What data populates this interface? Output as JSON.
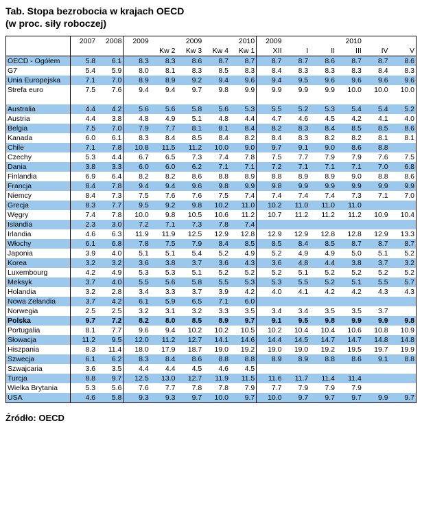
{
  "title": "Tab. Stopa bezrobocia w krajach OECD",
  "subtitle": "(w proc. siły roboczej)",
  "source": "Źródło: OECD",
  "colors": {
    "stripe": "#9bc8eb",
    "background": "#ffffff",
    "text": "#000000",
    "border": "#000000"
  },
  "header": {
    "row1": [
      "",
      "2007",
      "2008",
      "2009",
      "",
      "2009",
      "",
      "2010",
      "2009",
      "",
      "",
      "2010",
      "",
      ""
    ],
    "row2": [
      "",
      "",
      "",
      "",
      "Kw 2",
      "Kw 3",
      "Kw 4",
      "Kw 1",
      "XII",
      "I",
      "II",
      "III",
      "IV",
      "V"
    ]
  },
  "groups": [
    {
      "rows": [
        {
          "name": "OECD - Ogółem",
          "vals": [
            "5.8",
            "6.1",
            "8.3",
            "8.3",
            "8.6",
            "8.7",
            "8.7",
            "8.7",
            "8.7",
            "8.6",
            "8.7",
            "8.7",
            "8.6"
          ],
          "stripe": true
        },
        {
          "name": "G7",
          "vals": [
            "5.4",
            "5.9",
            "8.0",
            "8.1",
            "8.3",
            "8.5",
            "8.3",
            "8.4",
            "8.3",
            "8.3",
            "8.3",
            "8.4",
            "8.3"
          ],
          "stripe": false
        },
        {
          "name": "Unia Europejska",
          "vals": [
            "7.1",
            "7.0",
            "8.9",
            "8.9",
            "9.2",
            "9.4",
            "9.6",
            "9.4",
            "9.5",
            "9.6",
            "9.6",
            "9.6",
            "9.6"
          ],
          "stripe": true
        },
        {
          "name": "Strefa euro",
          "vals": [
            "7.5",
            "7.6",
            "9.4",
            "9.4",
            "9.7",
            "9.8",
            "9.9",
            "9.9",
            "9.9",
            "9.9",
            "10.0",
            "10.0",
            "10.0"
          ],
          "stripe": false
        }
      ]
    },
    {
      "rows": [
        {
          "name": "Australia",
          "vals": [
            "4.4",
            "4.2",
            "5.6",
            "5.6",
            "5.8",
            "5.6",
            "5.3",
            "5.5",
            "5.2",
            "5.3",
            "5.4",
            "5.4",
            "5.2"
          ],
          "stripe": true
        },
        {
          "name": "Austria",
          "vals": [
            "4.4",
            "3.8",
            "4.8",
            "4.9",
            "5.1",
            "4.8",
            "4.4",
            "4.7",
            "4.6",
            "4.5",
            "4.2",
            "4.1",
            "4.0"
          ],
          "stripe": false
        },
        {
          "name": "Belgia",
          "vals": [
            "7.5",
            "7.0",
            "7.9",
            "7.7",
            "8.1",
            "8.1",
            "8.4",
            "8.2",
            "8.3",
            "8.4",
            "8.5",
            "8.5",
            "8.6"
          ],
          "stripe": true
        },
        {
          "name": "Kanada",
          "vals": [
            "6.0",
            "6.1",
            "8.3",
            "8.4",
            "8.5",
            "8.4",
            "8.2",
            "8.4",
            "8.3",
            "8.2",
            "8.2",
            "8.1",
            "8.1"
          ],
          "stripe": false
        },
        {
          "name": "Chile",
          "vals": [
            "7.1",
            "7.8",
            "10.8",
            "11.5",
            "11.2",
            "10.0",
            "9.0",
            "9.7",
            "9.1",
            "9.0",
            "8.6",
            "8.8",
            ""
          ],
          "stripe": true
        },
        {
          "name": "Czechy",
          "vals": [
            "5.3",
            "4.4",
            "6.7",
            "6.5",
            "7.3",
            "7.4",
            "7.8",
            "7.5",
            "7.7",
            "7.9",
            "7.9",
            "7.6",
            "7.5"
          ],
          "stripe": false
        },
        {
          "name": "Dania",
          "vals": [
            "3.8",
            "3.3",
            "6.0",
            "6.0",
            "6.2",
            "7.1",
            "7.1",
            "7.2",
            "7.1",
            "7.1",
            "7.1",
            "7.0",
            "6.8"
          ],
          "stripe": true
        },
        {
          "name": "Finlandia",
          "vals": [
            "6.9",
            "6.4",
            "8.2",
            "8.2",
            "8.6",
            "8.8",
            "8.9",
            "8.8",
            "8.9",
            "8.9",
            "9.0",
            "8.8",
            "8.6"
          ],
          "stripe": false
        },
        {
          "name": "Francja",
          "vals": [
            "8.4",
            "7.8",
            "9.4",
            "9.4",
            "9.6",
            "9.8",
            "9.9",
            "9.8",
            "9.9",
            "9.9",
            "9.9",
            "9.9",
            "9.9"
          ],
          "stripe": true
        },
        {
          "name": "Niemcy",
          "vals": [
            "8.4",
            "7.3",
            "7.5",
            "7.6",
            "7.6",
            "7.5",
            "7.4",
            "7.4",
            "7.4",
            "7.4",
            "7.3",
            "7.1",
            "7.0"
          ],
          "stripe": false
        },
        {
          "name": "Grecja",
          "vals": [
            "8.3",
            "7.7",
            "9.5",
            "9.2",
            "9.8",
            "10.2",
            "11.0",
            "10.2",
            "11.0",
            "11.0",
            "11.0",
            "",
            ""
          ],
          "stripe": true
        },
        {
          "name": "Węgry",
          "vals": [
            "7.4",
            "7.8",
            "10.0",
            "9.8",
            "10.5",
            "10.6",
            "11.2",
            "10.7",
            "11.2",
            "11.2",
            "11.2",
            "10.9",
            "10.4"
          ],
          "stripe": false
        },
        {
          "name": "Islandia",
          "vals": [
            "2.3",
            "3.0",
            "7.2",
            "7.1",
            "7.3",
            "7.8",
            "7.4",
            "",
            "",
            "",
            "",
            "",
            ""
          ],
          "stripe": true
        },
        {
          "name": "Irlandia",
          "vals": [
            "4.6",
            "6.3",
            "11.9",
            "11.9",
            "12.5",
            "12.9",
            "12.8",
            "12.9",
            "12.9",
            "12.8",
            "12.8",
            "12.9",
            "13.3"
          ],
          "stripe": false
        },
        {
          "name": "Włochy",
          "vals": [
            "6.1",
            "6.8",
            "7.8",
            "7.5",
            "7.9",
            "8.4",
            "8.5",
            "8.5",
            "8.4",
            "8.5",
            "8.7",
            "8.7",
            "8.7"
          ],
          "stripe": true
        },
        {
          "name": "Japonia",
          "vals": [
            "3.9",
            "4.0",
            "5.1",
            "5.1",
            "5.4",
            "5.2",
            "4.9",
            "5.2",
            "4.9",
            "4.9",
            "5.0",
            "5.1",
            "5.2"
          ],
          "stripe": false
        },
        {
          "name": "Korea",
          "vals": [
            "3.2",
            "3.2",
            "3.6",
            "3.8",
            "3.7",
            "3.6",
            "4.3",
            "3.6",
            "4.8",
            "4.4",
            "3.8",
            "3.7",
            "3.2"
          ],
          "stripe": true
        },
        {
          "name": "Luxembourg",
          "vals": [
            "4.2",
            "4.9",
            "5.3",
            "5.3",
            "5.1",
            "5.2",
            "5.2",
            "5.2",
            "5.1",
            "5.2",
            "5.2",
            "5.2",
            "5.2"
          ],
          "stripe": false
        },
        {
          "name": "Meksyk",
          "vals": [
            "3.7",
            "4.0",
            "5.5",
            "5.6",
            "5.8",
            "5.5",
            "5.3",
            "5.3",
            "5.5",
            "5.2",
            "5.1",
            "5.5",
            "5.7"
          ],
          "stripe": true
        },
        {
          "name": "Holandia",
          "vals": [
            "3.2",
            "2.8",
            "3.4",
            "3.3",
            "3.7",
            "3.9",
            "4.2",
            "4.0",
            "4.1",
            "4.2",
            "4.2",
            "4.3",
            "4.3"
          ],
          "stripe": false
        },
        {
          "name": "Nowa Zelandia",
          "vals": [
            "3.7",
            "4.2",
            "6.1",
            "5.9",
            "6.5",
            "7.1",
            "6.0",
            "",
            "",
            "",
            "",
            "",
            ""
          ],
          "stripe": true
        },
        {
          "name": "Norwegia",
          "vals": [
            "2.5",
            "2.5",
            "3.2",
            "3.1",
            "3.2",
            "3.3",
            "3.5",
            "3.4",
            "3.4",
            "3.5",
            "3.5",
            "3.7",
            ""
          ],
          "stripe": false
        },
        {
          "name": "Polska",
          "vals": [
            "9.7",
            "7.2",
            "8.2",
            "8.0",
            "8.5",
            "8.9",
            "9.7",
            "9.1",
            "9.5",
            "9.8",
            "9.9",
            "9.9",
            "9.8"
          ],
          "stripe": true,
          "bold": true
        },
        {
          "name": "Portugalia",
          "vals": [
            "8.1",
            "7.7",
            "9.6",
            "9.4",
            "10.2",
            "10.2",
            "10.5",
            "10.2",
            "10.4",
            "10.4",
            "10.6",
            "10.8",
            "10.9"
          ],
          "stripe": false
        },
        {
          "name": "Słowacja",
          "vals": [
            "11.2",
            "9.5",
            "12.0",
            "11.2",
            "12.7",
            "14.1",
            "14.6",
            "14.4",
            "14.5",
            "14.7",
            "14.7",
            "14.8",
            "14.8"
          ],
          "stripe": true
        },
        {
          "name": "Hiszpania",
          "vals": [
            "8.3",
            "11.4",
            "18.0",
            "17.9",
            "18.7",
            "19.0",
            "19.2",
            "19.0",
            "19.0",
            "19.2",
            "19.5",
            "19.7",
            "19.9"
          ],
          "stripe": false
        },
        {
          "name": "Szwecja",
          "vals": [
            "6.1",
            "6.2",
            "8.3",
            "8.4",
            "8.6",
            "8.8",
            "8.8",
            "8.9",
            "8.9",
            "8.8",
            "8.6",
            "9.1",
            "8.8"
          ],
          "stripe": true
        },
        {
          "name": "Szwajcaria",
          "vals": [
            "3.6",
            "3.5",
            "4.4",
            "4.4",
            "4.5",
            "4.6",
            "4.5",
            "",
            "",
            "",
            "",
            "",
            ""
          ],
          "stripe": false
        },
        {
          "name": "Turcja",
          "vals": [
            "8.8",
            "9.7",
            "12.5",
            "13.0",
            "12.7",
            "11.9",
            "11.5",
            "11.6",
            "11.7",
            "11.4",
            "11.4",
            "",
            ""
          ],
          "stripe": true
        },
        {
          "name": "Wielka Brytania",
          "vals": [
            "5.3",
            "5.6",
            "7.6",
            "7.7",
            "7.8",
            "7.8",
            "7.9",
            "7.7",
            "7.9",
            "7.9",
            "7.9",
            "",
            ""
          ],
          "stripe": false
        },
        {
          "name": "USA",
          "vals": [
            "4.6",
            "5.8",
            "9.3",
            "9.3",
            "9.7",
            "10.0",
            "9.7",
            "10.0",
            "9.7",
            "9.7",
            "9.7",
            "9.9",
            "9.7"
          ],
          "stripe": true
        }
      ]
    }
  ]
}
